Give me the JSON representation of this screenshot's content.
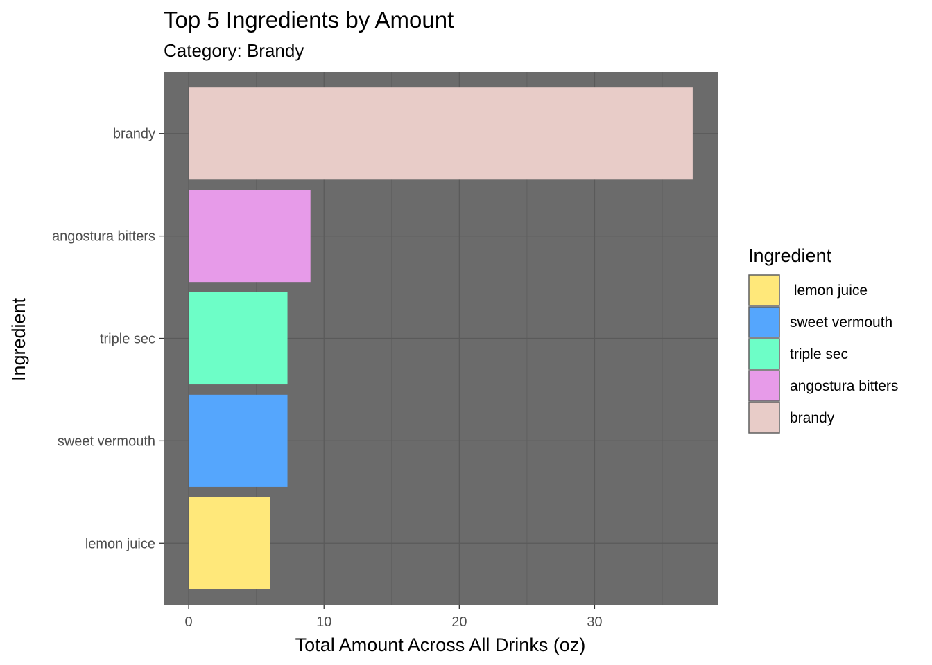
{
  "chart_data": {
    "type": "bar",
    "orientation": "horizontal",
    "title": "Top 5 Ingredients by Amount",
    "subtitle": "Category: Brandy",
    "xlabel": "Total Amount Across All Drinks (oz)",
    "ylabel": "Ingredient",
    "xlim": [
      -1.85,
      39.1
    ],
    "xticks": [
      0,
      10,
      20,
      30
    ],
    "grid": true,
    "panel_background": "#6b6b6b",
    "categories": [
      "brandy",
      "angostura bitters",
      "triple sec",
      "sweet vermouth",
      "lemon juice"
    ],
    "values": [
      37.25,
      9.0,
      7.3,
      7.3,
      6.0
    ],
    "colors": {
      "brandy": "#e8ccc8",
      "angostura bitters": "#e79be9",
      "triple sec": "#6dfec7",
      "sweet vermouth": "#55a6fd",
      "lemon juice": "#ffe87a"
    },
    "legend": {
      "title": "Ingredient",
      "position": "right",
      "entries": [
        " lemon juice",
        "sweet vermouth",
        "triple sec",
        "angostura bitters",
        "brandy"
      ],
      "keys": [
        "lemon juice",
        "sweet vermouth",
        "triple sec",
        "angostura bitters",
        "brandy"
      ]
    }
  }
}
